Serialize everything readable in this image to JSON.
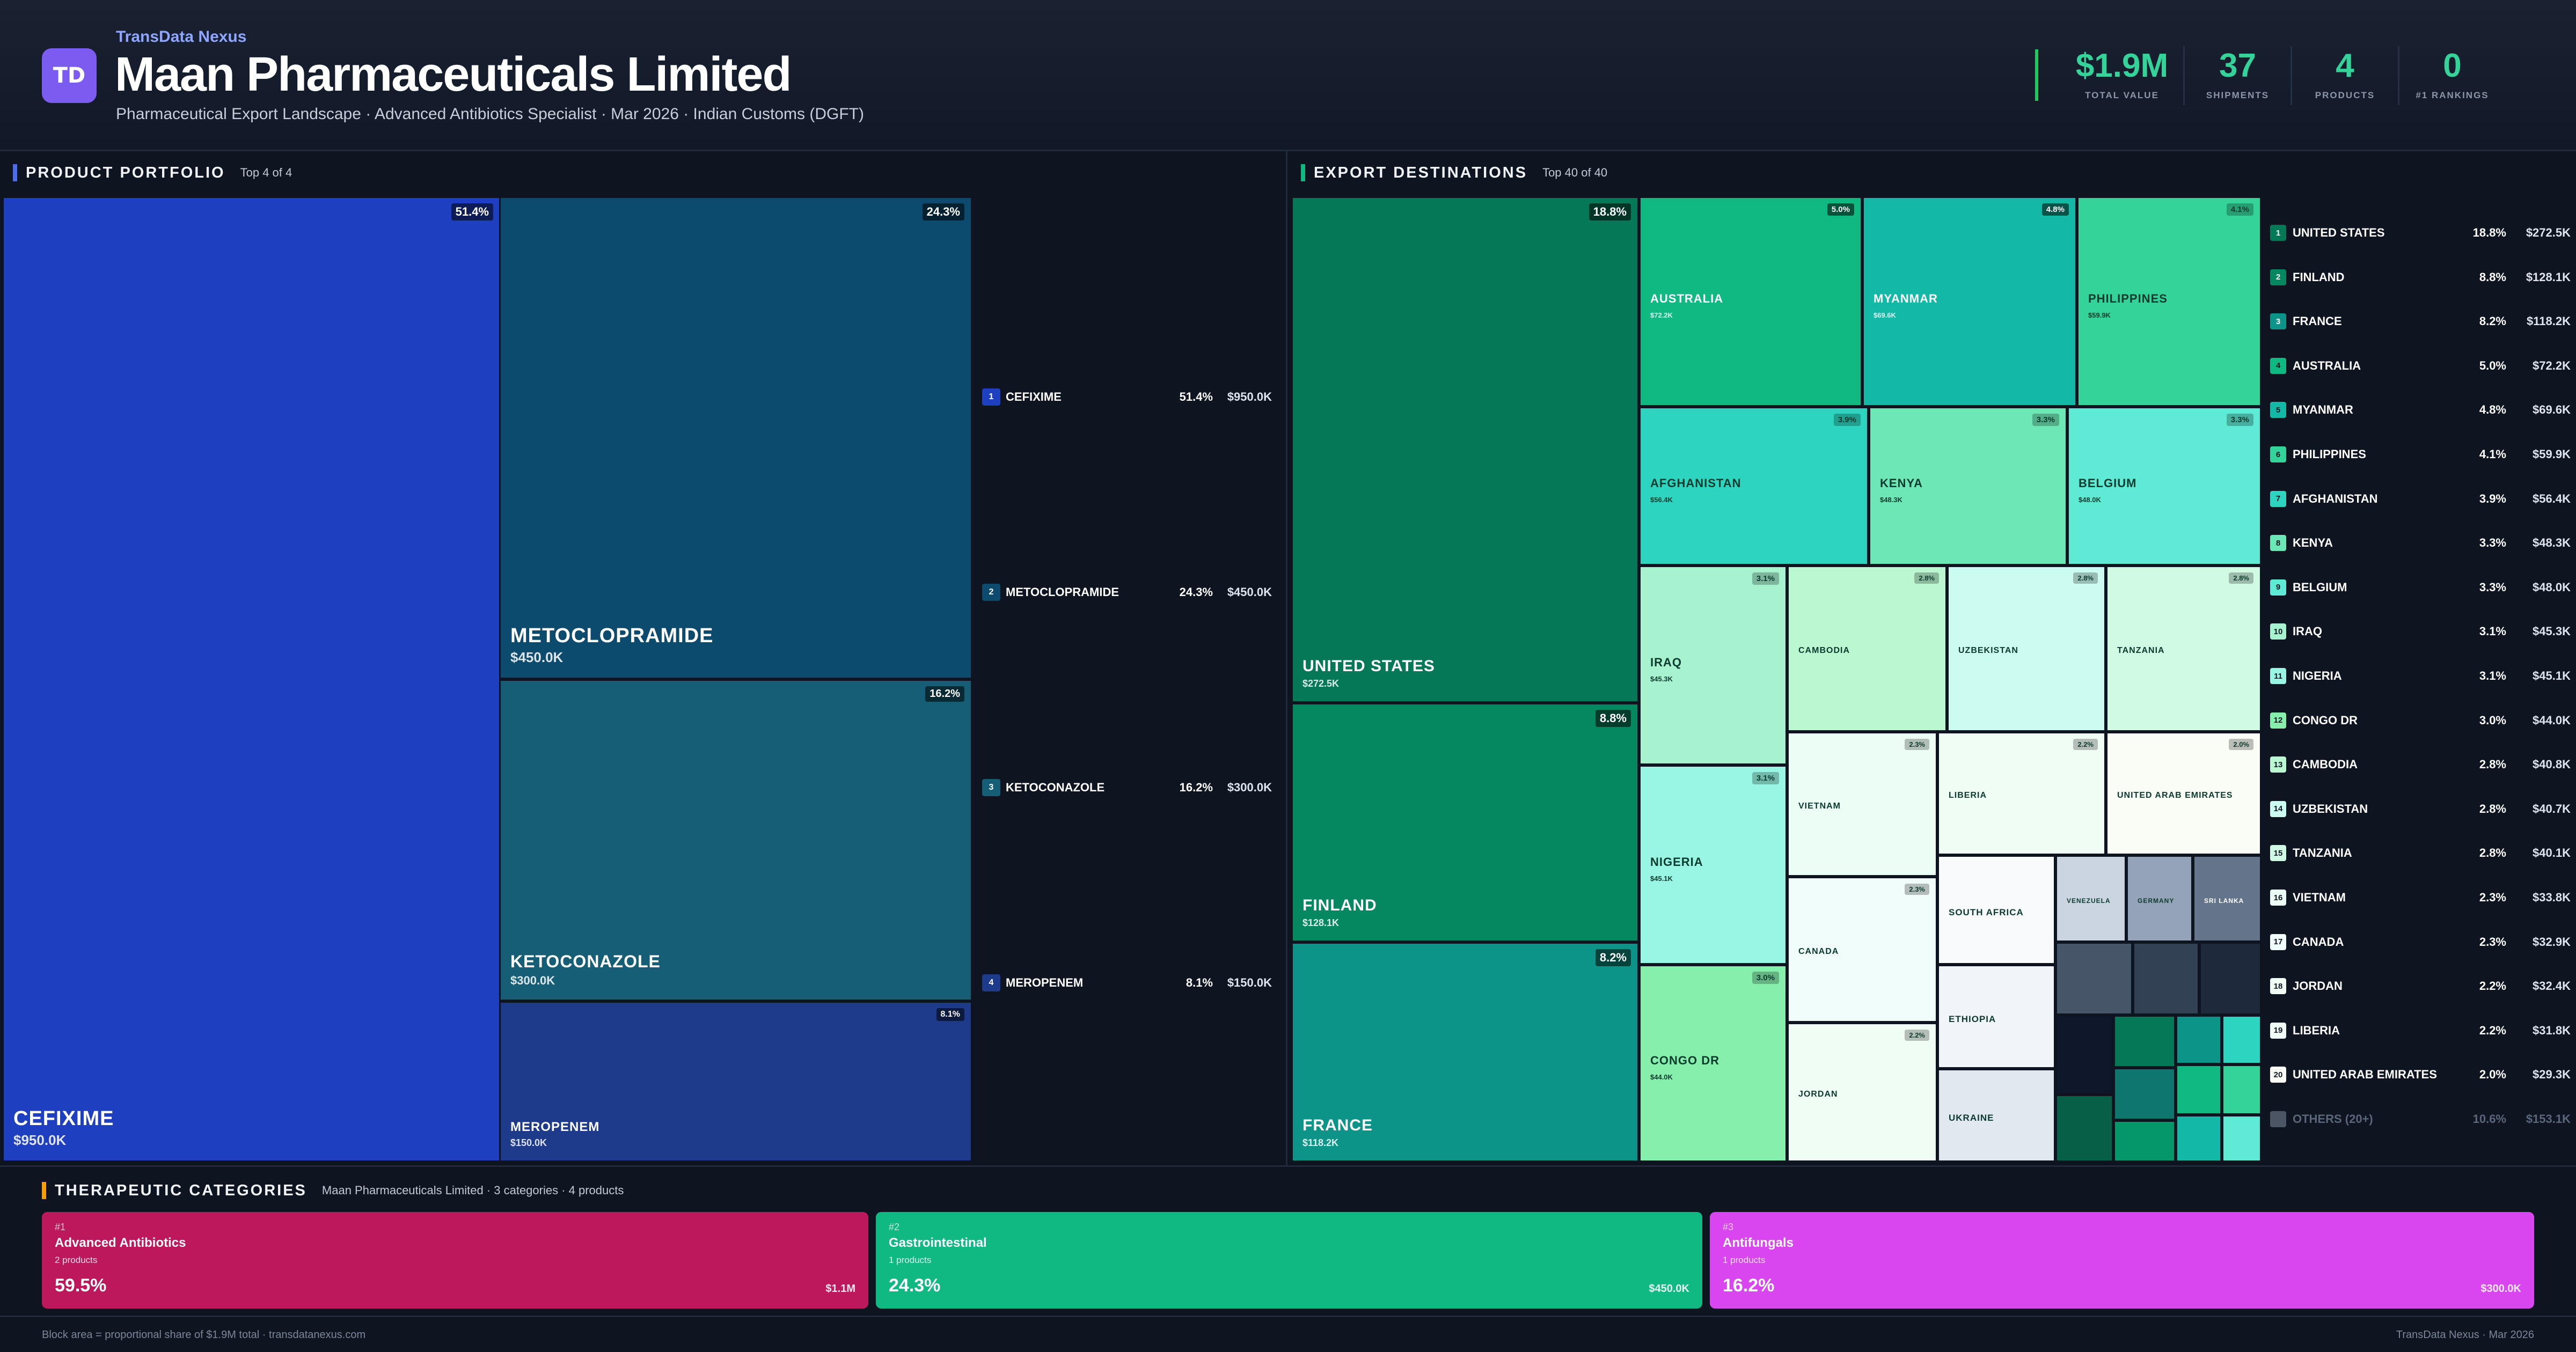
{
  "header": {
    "logo_text": "TD",
    "brand": "TransData Nexus",
    "title": "Maan Pharmaceuticals Limited",
    "subtitle": "Pharmaceutical Export Landscape · Advanced Antibiotics Specialist · Mar 2026 · Indian Customs (DGFT)",
    "stats": [
      {
        "value": "$1.9M",
        "label": "TOTAL VALUE"
      },
      {
        "value": "37",
        "label": "SHIPMENTS"
      },
      {
        "value": "4",
        "label": "PRODUCTS"
      },
      {
        "value": "0",
        "label": "#1 RANKINGS"
      }
    ],
    "accent_color": "#34d399"
  },
  "products": {
    "title": "PRODUCT PORTFOLIO",
    "meta": "Top 4 of 4",
    "accent_color": "#4f6bed",
    "items": [
      {
        "rank": "1",
        "name": "CEFIXIME",
        "pct": "51.4%",
        "value": "$950.0K",
        "color": "#1e3fbf"
      },
      {
        "rank": "2",
        "name": "METOCLOPRAMIDE",
        "pct": "24.3%",
        "value": "$450.0K",
        "color": "#0c4a6e"
      },
      {
        "rank": "3",
        "name": "KETOCONAZOLE",
        "pct": "16.2%",
        "value": "$300.0K",
        "color": "#155e75"
      },
      {
        "rank": "4",
        "name": "MEROPENEM",
        "pct": "8.1%",
        "value": "$150.0K",
        "color": "#1e3a8a"
      }
    ]
  },
  "destinations": {
    "title": "EXPORT DESTINATIONS",
    "meta": "Top 40 of 40",
    "accent_color": "#10b981",
    "items": [
      {
        "rank": "1",
        "name": "UNITED STATES",
        "pct": "18.8%",
        "value": "$272.5K",
        "color": "#047857"
      },
      {
        "rank": "2",
        "name": "FINLAND",
        "pct": "8.8%",
        "value": "$128.1K",
        "color": "#05875f"
      },
      {
        "rank": "3",
        "name": "FRANCE",
        "pct": "8.2%",
        "value": "$118.2K",
        "color": "#0d9488"
      },
      {
        "rank": "4",
        "name": "AUSTRALIA",
        "pct": "5.0%",
        "value": "$72.2K",
        "color": "#10b981"
      },
      {
        "rank": "5",
        "name": "MYANMAR",
        "pct": "4.8%",
        "value": "$69.6K",
        "color": "#14b8a6"
      },
      {
        "rank": "6",
        "name": "PHILIPPINES",
        "pct": "4.1%",
        "value": "$59.9K",
        "color": "#34d399"
      },
      {
        "rank": "7",
        "name": "AFGHANISTAN",
        "pct": "3.9%",
        "value": "$56.4K",
        "color": "#2dd4bf"
      },
      {
        "rank": "8",
        "name": "KENYA",
        "pct": "3.3%",
        "value": "$48.3K",
        "color": "#6ee7b7"
      },
      {
        "rank": "9",
        "name": "BELGIUM",
        "pct": "3.3%",
        "value": "$48.0K",
        "color": "#5eead4"
      },
      {
        "rank": "10",
        "name": "IRAQ",
        "pct": "3.1%",
        "value": "$45.3K",
        "color": "#a7f3d0"
      },
      {
        "rank": "11",
        "name": "NIGERIA",
        "pct": "3.1%",
        "value": "$45.1K",
        "color": "#99f6e4"
      },
      {
        "rank": "12",
        "name": "CONGO DR",
        "pct": "3.0%",
        "value": "$44.0K",
        "color": "#86efac"
      },
      {
        "rank": "13",
        "name": "CAMBODIA",
        "pct": "2.8%",
        "value": "$40.8K",
        "color": "#bbf7d0"
      },
      {
        "rank": "14",
        "name": "UZBEKISTAN",
        "pct": "2.8%",
        "value": "$40.7K",
        "color": "#ccfbf1"
      },
      {
        "rank": "15",
        "name": "TANZANIA",
        "pct": "2.8%",
        "value": "$40.1K",
        "color": "#d1fae5"
      },
      {
        "rank": "16",
        "name": "VIETNAM",
        "pct": "2.3%",
        "value": "$33.8K",
        "color": "#ecfdf5"
      },
      {
        "rank": "17",
        "name": "CANADA",
        "pct": "2.3%",
        "value": "$32.9K",
        "color": "#f0fdfa"
      },
      {
        "rank": "18",
        "name": "JORDAN",
        "pct": "2.2%",
        "value": "$32.4K",
        "color": "#f0fdf4"
      },
      {
        "rank": "19",
        "name": "LIBERIA",
        "pct": "2.2%",
        "value": "$31.8K",
        "color": "#f0fdf4"
      },
      {
        "rank": "20",
        "name": "UNITED ARAB EMIRATES",
        "pct": "2.0%",
        "value": "$29.3K",
        "color": "#fafdf6"
      }
    ],
    "others": {
      "name": "OTHERS (20+)",
      "pct": "10.6%",
      "value": "$153.1K",
      "color": "#4b5563"
    },
    "small_tiles": [
      {
        "name": "SOUTH AFRICA",
        "color": "#f8fafc"
      },
      {
        "name": "ETHIOPIA",
        "color": "#f1f5f9"
      },
      {
        "name": "UKRAINE",
        "color": "#e2e8f0"
      },
      {
        "name": "VENEZUELA",
        "color": "#cbd5e1"
      },
      {
        "name": "GERMANY",
        "color": "#94a3b8"
      },
      {
        "name": "SRI LANKA",
        "color": "#64748b"
      },
      {
        "name": "",
        "color": "#475569"
      },
      {
        "name": "",
        "color": "#334155"
      },
      {
        "name": "",
        "color": "#1e293b"
      },
      {
        "name": "",
        "color": "#0f172a"
      },
      {
        "name": "",
        "color": "#065f46"
      },
      {
        "name": "",
        "color": "#047857"
      },
      {
        "name": "",
        "color": "#0f766e"
      },
      {
        "name": "",
        "color": "#059669"
      },
      {
        "name": "",
        "color": "#0d9488"
      },
      {
        "name": "",
        "color": "#10b981"
      },
      {
        "name": "",
        "color": "#14b8a6"
      },
      {
        "name": "",
        "color": "#2dd4bf"
      },
      {
        "name": "",
        "color": "#34d399"
      },
      {
        "name": "",
        "color": "#5eead4"
      },
      {
        "name": "",
        "color": "#6ee7b7"
      }
    ]
  },
  "categories": {
    "title": "THERAPEUTIC CATEGORIES",
    "meta": "Maan Pharmaceuticals Limited · 3 categories · 4 products",
    "accent_color": "#f59e0b",
    "items": [
      {
        "rank": "#1",
        "name": "Advanced Antibiotics",
        "count": "2 products",
        "pct": "59.5%",
        "value": "$1.1M",
        "color": "#be185d"
      },
      {
        "rank": "#2",
        "name": "Gastrointestinal",
        "count": "1 products",
        "pct": "24.3%",
        "value": "$450.0K",
        "color": "#10b981"
      },
      {
        "rank": "#3",
        "name": "Antifungals",
        "count": "1 products",
        "pct": "16.2%",
        "value": "$300.0K",
        "color": "#d946ef"
      }
    ]
  },
  "footer": {
    "left": "Block area = proportional share of $1.9M total · transdatanexus.com",
    "right": "TransData Nexus · Mar 2026"
  }
}
